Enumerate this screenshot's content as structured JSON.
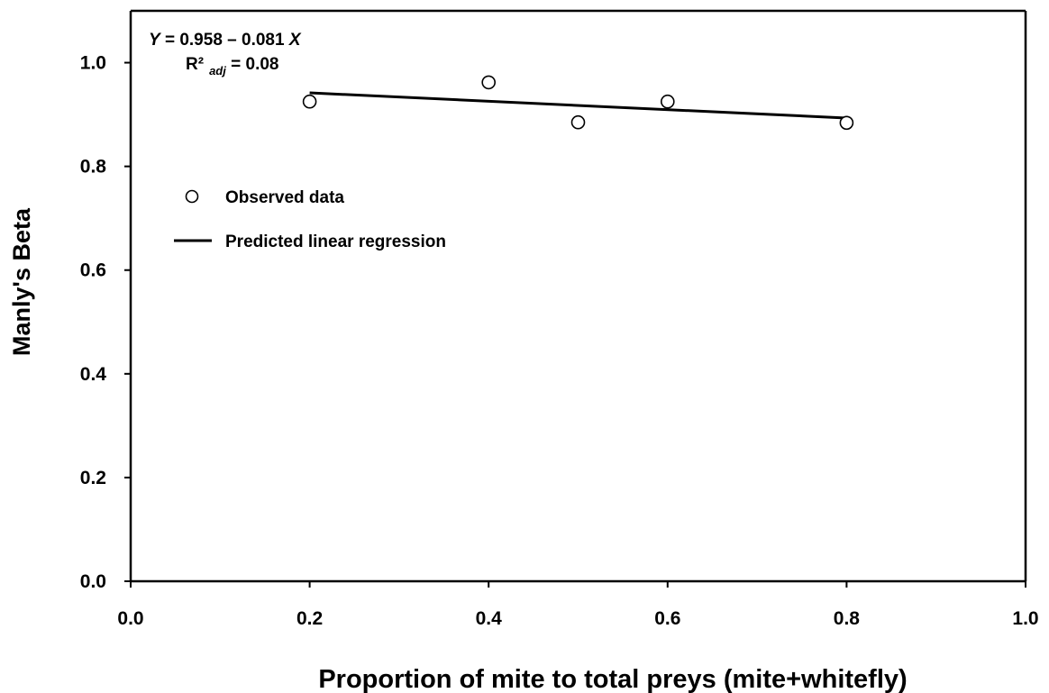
{
  "chart_data": {
    "type": "scatter",
    "xlabel": "Proportion of mite to total preys (mite+whitefly)",
    "ylabel": "Manly's Beta",
    "xlim": [
      0.0,
      1.0
    ],
    "ylim": [
      0.0,
      1.1
    ],
    "x_ticks": [
      0.0,
      0.2,
      0.4,
      0.6,
      0.8,
      1.0
    ],
    "y_ticks": [
      0.0,
      0.2,
      0.4,
      0.6,
      0.8,
      1.0
    ],
    "x_tick_labels": [
      "0.0",
      "0.2",
      "0.4",
      "0.6",
      "0.8",
      "1.0"
    ],
    "y_tick_labels": [
      "0.0",
      "0.2",
      "0.4",
      "0.6",
      "0.8",
      "1.0"
    ],
    "grid": false,
    "legend_position": "upper-left",
    "series": [
      {
        "name": "Observed data",
        "kind": "scatter",
        "marker": "open-circle",
        "x": [
          0.2,
          0.4,
          0.5,
          0.6,
          0.8
        ],
        "y": [
          0.925,
          0.962,
          0.885,
          0.925,
          0.884
        ]
      },
      {
        "name": "Predicted linear regression",
        "kind": "line",
        "x": [
          0.2,
          0.8
        ],
        "y": [
          0.9418,
          0.8932
        ]
      }
    ],
    "annotation": {
      "equation_y": "Y",
      "equation_mid": " = 0.958 – 0.081 ",
      "equation_x": "X",
      "r2_prefix": "R²",
      "r2_sub": "adj",
      "r2_suffix": " = 0.08"
    }
  }
}
